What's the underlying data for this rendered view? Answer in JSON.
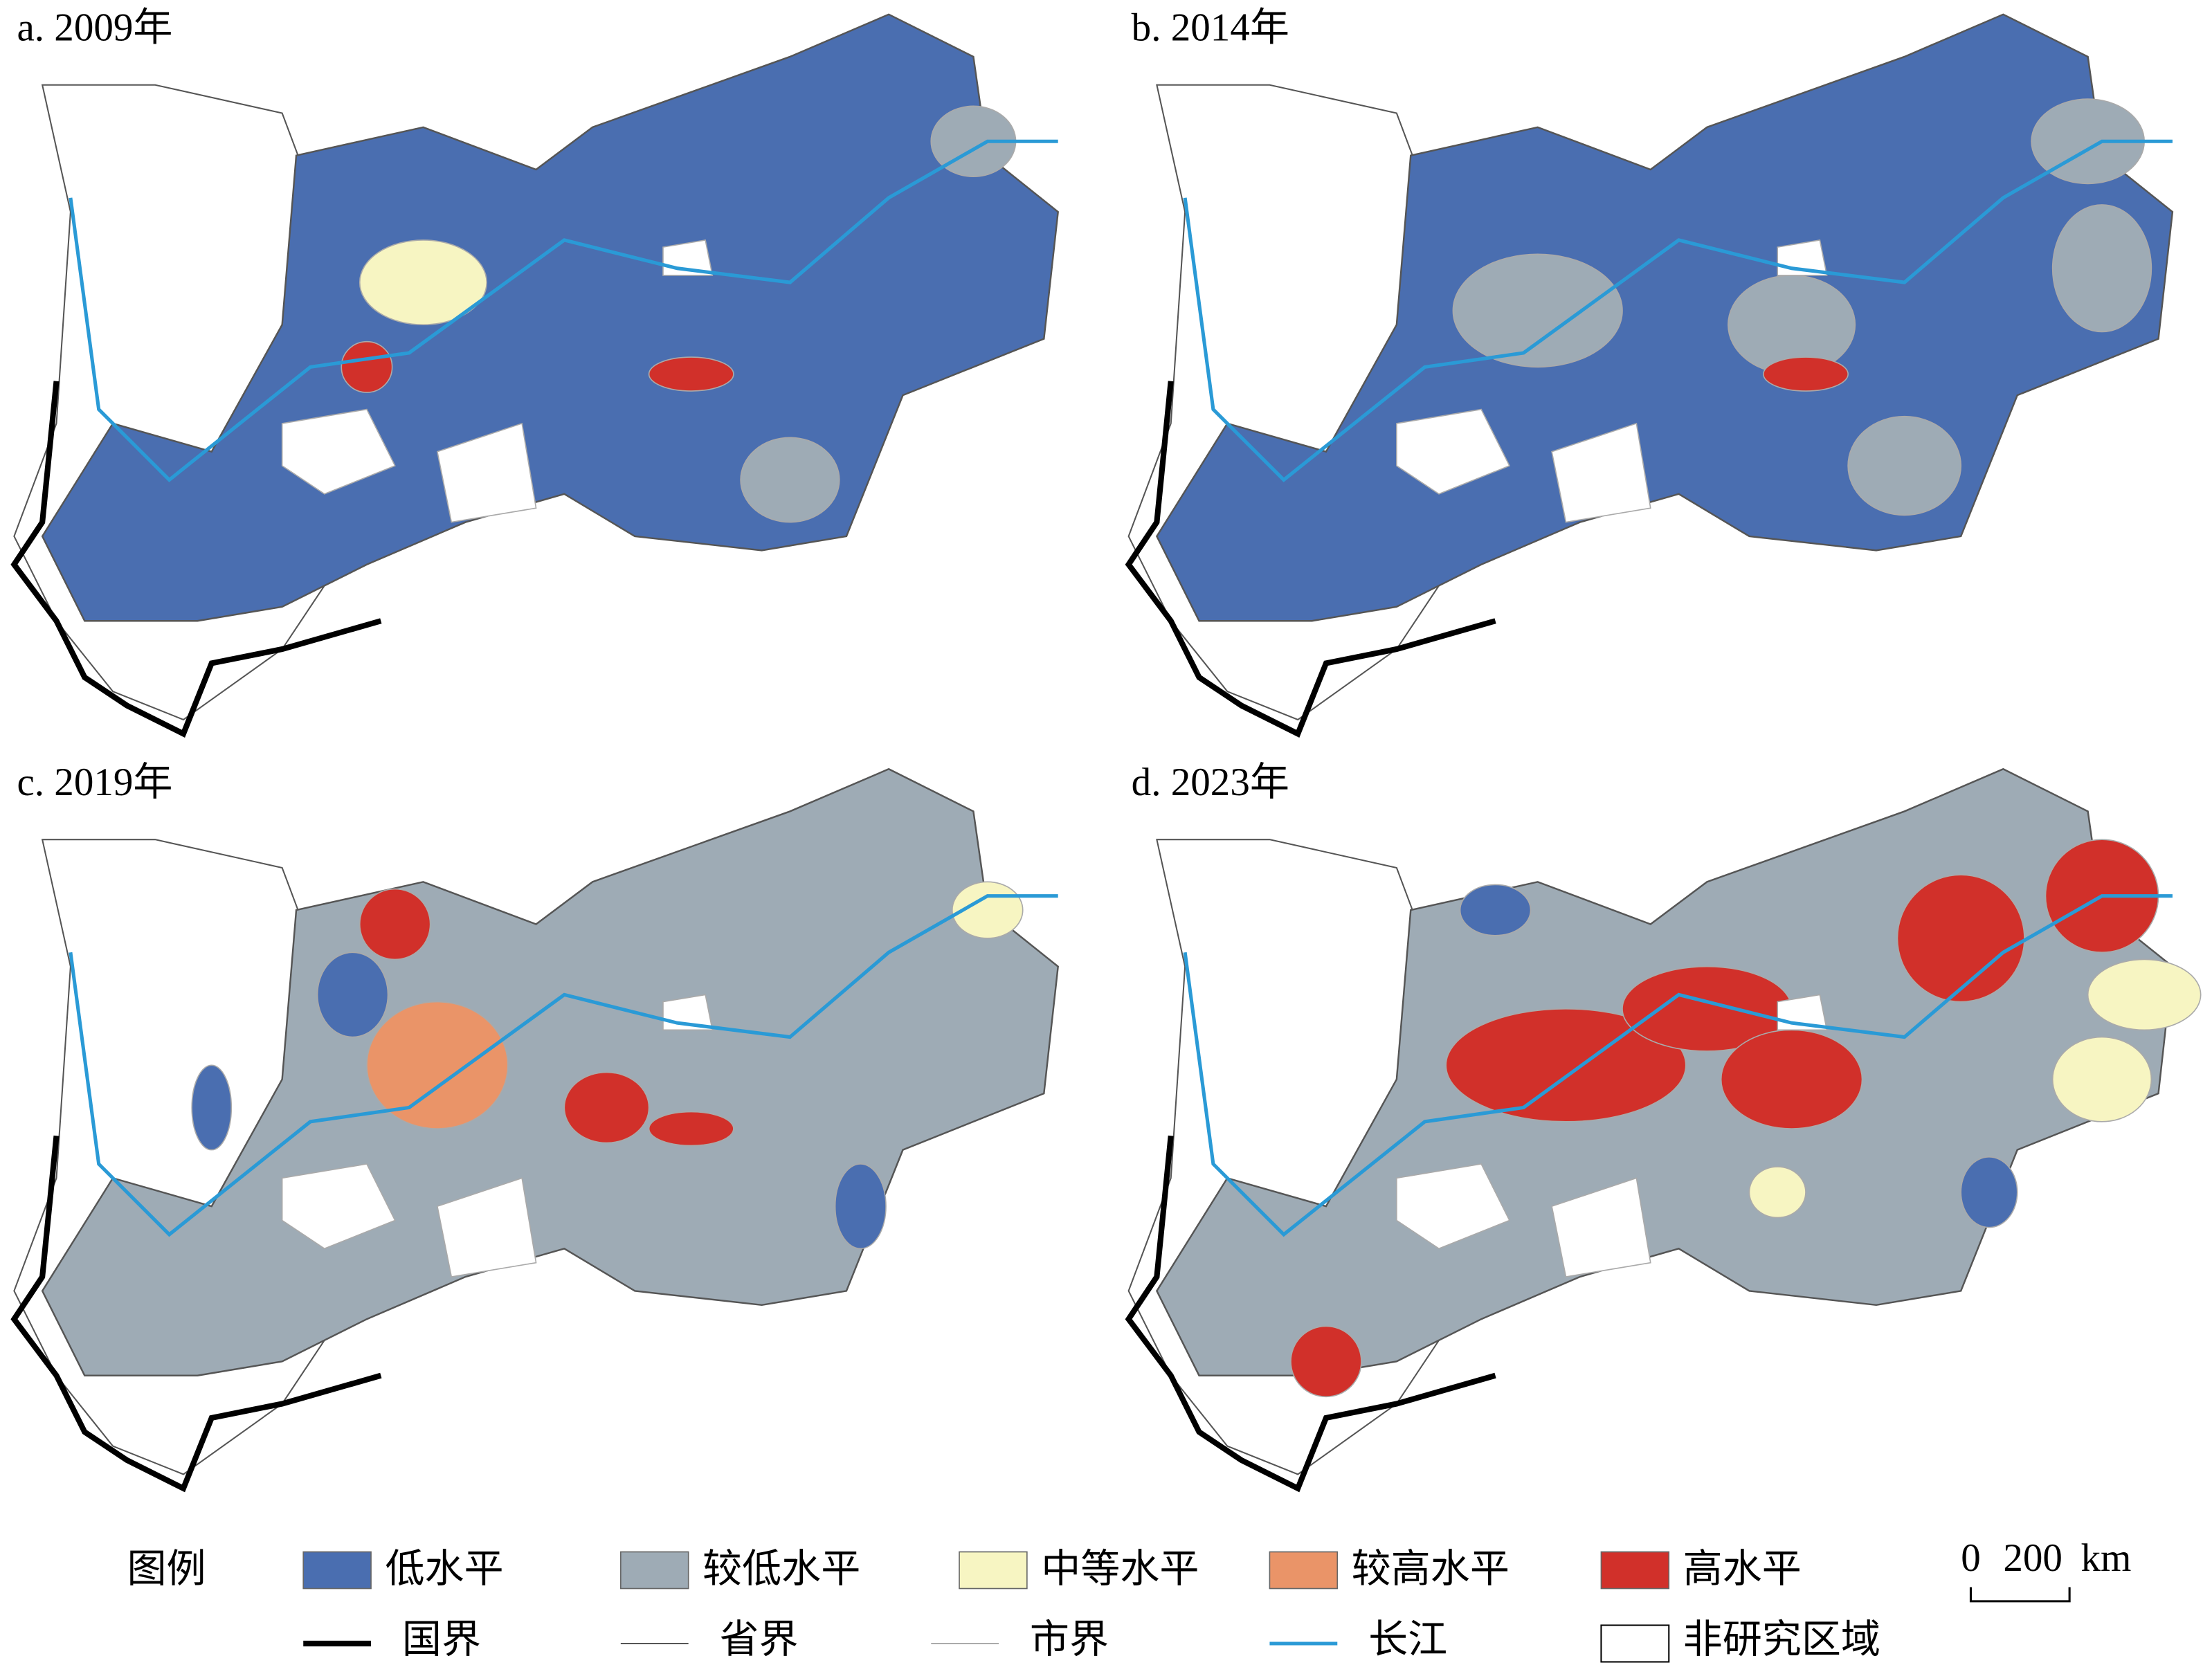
{
  "panels": [
    {
      "label": "a. 2009年"
    },
    {
      "label": "b. 2014年"
    },
    {
      "label": "c. 2019年"
    },
    {
      "label": "d. 2023年"
    }
  ],
  "legend": {
    "title": "图例",
    "fill_items": [
      {
        "label": "低水平",
        "color": "#4a6eb0"
      },
      {
        "label": "较低水平",
        "color": "#9eabb5"
      },
      {
        "label": "中等水平",
        "color": "#f7f5c2"
      },
      {
        "label": "较高水平",
        "color": "#ea9468"
      },
      {
        "label": "高水平",
        "color": "#d1302a"
      }
    ],
    "line_items": [
      {
        "label": "国界",
        "color": "#000000"
      },
      {
        "label": "省界",
        "color": "#555555"
      },
      {
        "label": "市界",
        "color": "#aaaaaa"
      },
      {
        "label": "长江",
        "color": "#2a9ad6"
      }
    ],
    "box_item": {
      "label": "非研究区域"
    }
  },
  "scale_bar": {
    "labels": [
      "0",
      "200",
      "km"
    ]
  }
}
